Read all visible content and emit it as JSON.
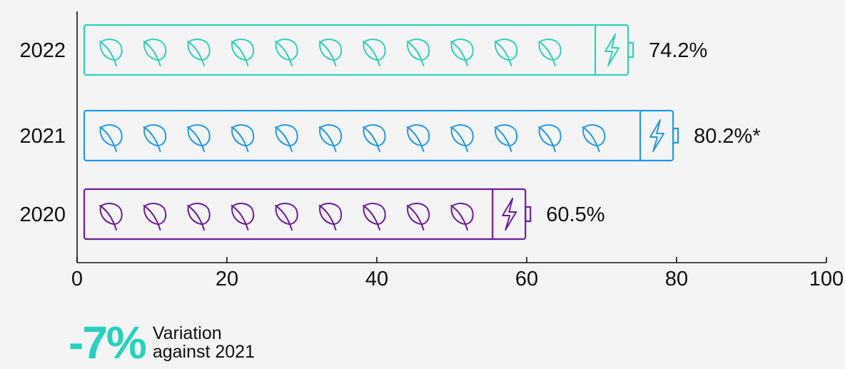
{
  "chart_data": {
    "type": "bar",
    "orientation": "horizontal",
    "categories": [
      "2022",
      "2021",
      "2020"
    ],
    "values": [
      74.2,
      80.2,
      60.5
    ],
    "value_labels": [
      "74.2%",
      "80.2%*",
      "60.5%"
    ],
    "xlim": [
      0,
      100
    ],
    "xticks": [
      0,
      20,
      40,
      60,
      80,
      100
    ],
    "colors": [
      "#2fd0bc",
      "#2199e8",
      "#6c1c99"
    ],
    "title": "",
    "xlabel": "",
    "ylabel": ""
  },
  "footer": {
    "variation": "-7%",
    "label_line_1": "Variation",
    "label_line_2": "against 2021"
  }
}
